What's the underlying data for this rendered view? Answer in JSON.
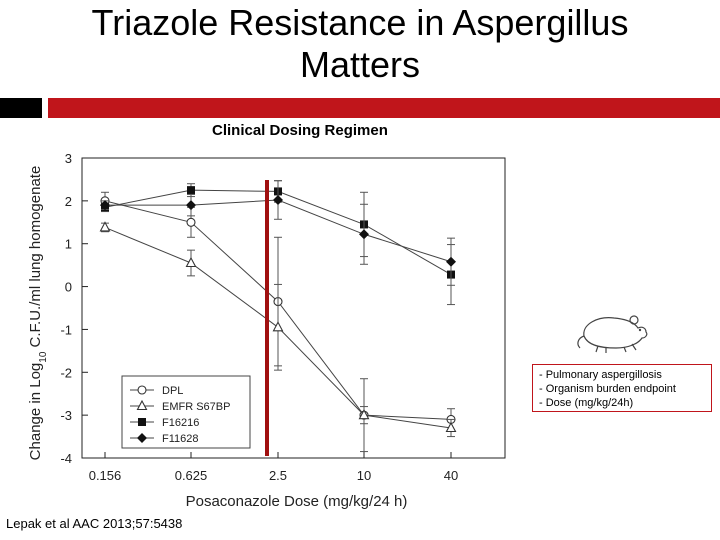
{
  "slide": {
    "title_line1": "Triazole Resistance in Aspergillus",
    "title_line2": "Matters",
    "subtitle": "Clinical Dosing Regimen",
    "citation": "Lepak et al AAC 2013;57:5438"
  },
  "info_box": {
    "lines": [
      "- Pulmonary aspergillosis",
      "- Organism burden endpoint",
      "- Dose (mg/kg/24h)"
    ]
  },
  "icons": {
    "mouse": "mouse-icon"
  },
  "colors": {
    "accent_red": "#c0151b",
    "dark_bar": "#000000"
  },
  "chart_data": {
    "type": "line",
    "xlabel": "Posaconazole Dose (mg/kg/24 h)",
    "ylabel_pre": "Change in Log",
    "ylabel_sub": "10",
    "ylabel_post": " C.F.U./ml lung homogenate",
    "categories": [
      "0.156",
      "0.625",
      "2.5",
      "10",
      "40"
    ],
    "ylim": [
      -4,
      3
    ],
    "yticks": [
      "3",
      "2",
      "1",
      "0",
      "-1",
      "-2",
      "-3",
      "-4"
    ],
    "reference_line": {
      "x": "2.5",
      "color": "#a01010"
    },
    "legend_position": "lower-left",
    "series": [
      {
        "name": "DPL",
        "marker": "open-circle",
        "values": [
          2.0,
          1.5,
          -0.35,
          -3.0,
          -3.1
        ],
        "errors": [
          0.2,
          0.35,
          1.5,
          0.85,
          0.25
        ]
      },
      {
        "name": "EMFR S67BP",
        "marker": "open-triangle",
        "values": [
          1.38,
          0.55,
          -0.95,
          -3.0,
          -3.3
        ],
        "errors": [
          0.1,
          0.3,
          1.0,
          0.2,
          0.2
        ]
      },
      {
        "name": "F16216",
        "marker": "filled-square",
        "values": [
          1.85,
          2.25,
          2.22,
          1.45,
          0.28
        ],
        "errors": [
          0.1,
          0.15,
          0.25,
          0.75,
          0.7
        ]
      },
      {
        "name": "F11628",
        "marker": "filled-diamond",
        "values": [
          1.9,
          1.9,
          2.02,
          1.22,
          0.58
        ],
        "errors": [
          0.1,
          0.25,
          0.45,
          0.7,
          0.55
        ]
      }
    ]
  }
}
